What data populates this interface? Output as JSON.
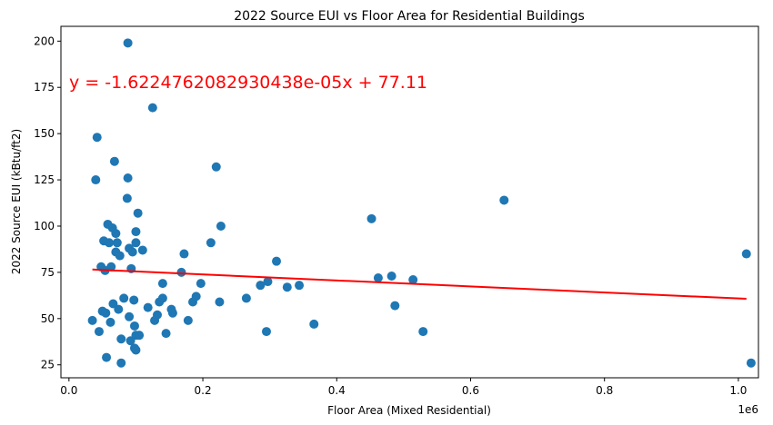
{
  "chart_data": {
    "type": "scatter",
    "title": "2022 Source EUI vs Floor Area for Residential Buildings",
    "xlabel": "Floor Area (Mixed Residential)",
    "ylabel": "2022 Source EUI (kBtu/ft2)",
    "x_offset_label": "1e6",
    "xlim": [
      -0.012,
      1.03
    ],
    "ylim": [
      18,
      208
    ],
    "x_ticks": [
      0.0,
      0.2,
      0.4,
      0.6,
      0.8,
      1.0
    ],
    "x_tick_labels": [
      "0.0",
      "0.2",
      "0.4",
      "0.6",
      "0.8",
      "1.0"
    ],
    "y_ticks": [
      25,
      50,
      75,
      100,
      125,
      150,
      175,
      200
    ],
    "y_tick_labels": [
      "25",
      "50",
      "75",
      "100",
      "125",
      "150",
      "175",
      "200"
    ],
    "grid": false,
    "marker_color": "#1f77b4",
    "line_color": "#ff0000",
    "equation_color": "#ff0000",
    "annotation": "y = -1.6224762082930438e-05x + 77.11",
    "regression": {
      "slope_per_1e6": -16.22476208293044,
      "intercept": 77.11,
      "x_range": [
        0.035,
        1.012
      ]
    },
    "points": [
      [
        0.035,
        49
      ],
      [
        0.04,
        125
      ],
      [
        0.042,
        148
      ],
      [
        0.045,
        43
      ],
      [
        0.048,
        78
      ],
      [
        0.05,
        54
      ],
      [
        0.052,
        92
      ],
      [
        0.054,
        76
      ],
      [
        0.055,
        53
      ],
      [
        0.056,
        29
      ],
      [
        0.058,
        101
      ],
      [
        0.06,
        91
      ],
      [
        0.062,
        48
      ],
      [
        0.063,
        78
      ],
      [
        0.065,
        99
      ],
      [
        0.066,
        58
      ],
      [
        0.068,
        135
      ],
      [
        0.07,
        86
      ],
      [
        0.07,
        96
      ],
      [
        0.072,
        91
      ],
      [
        0.074,
        55
      ],
      [
        0.076,
        84
      ],
      [
        0.078,
        39
      ],
      [
        0.078,
        26
      ],
      [
        0.082,
        61
      ],
      [
        0.087,
        115
      ],
      [
        0.088,
        199
      ],
      [
        0.088,
        126
      ],
      [
        0.09,
        88
      ],
      [
        0.09,
        51
      ],
      [
        0.092,
        38
      ],
      [
        0.093,
        77
      ],
      [
        0.095,
        86
      ],
      [
        0.097,
        60
      ],
      [
        0.098,
        46
      ],
      [
        0.098,
        34
      ],
      [
        0.1,
        33
      ],
      [
        0.1,
        41
      ],
      [
        0.1,
        97
      ],
      [
        0.1,
        91
      ],
      [
        0.103,
        107
      ],
      [
        0.105,
        41
      ],
      [
        0.11,
        87
      ],
      [
        0.118,
        56
      ],
      [
        0.125,
        164
      ],
      [
        0.128,
        49
      ],
      [
        0.132,
        52
      ],
      [
        0.135,
        59
      ],
      [
        0.14,
        61
      ],
      [
        0.14,
        69
      ],
      [
        0.145,
        42
      ],
      [
        0.153,
        55
      ],
      [
        0.155,
        53
      ],
      [
        0.168,
        75
      ],
      [
        0.172,
        85
      ],
      [
        0.178,
        49
      ],
      [
        0.185,
        59
      ],
      [
        0.19,
        62
      ],
      [
        0.197,
        69
      ],
      [
        0.212,
        91
      ],
      [
        0.22,
        132
      ],
      [
        0.225,
        59
      ],
      [
        0.227,
        100
      ],
      [
        0.265,
        61
      ],
      [
        0.286,
        68
      ],
      [
        0.295,
        43
      ],
      [
        0.297,
        70
      ],
      [
        0.31,
        81
      ],
      [
        0.326,
        67
      ],
      [
        0.344,
        68
      ],
      [
        0.366,
        47
      ],
      [
        0.452,
        104
      ],
      [
        0.462,
        72
      ],
      [
        0.482,
        73
      ],
      [
        0.487,
        57
      ],
      [
        0.514,
        71
      ],
      [
        0.529,
        43
      ],
      [
        0.65,
        114
      ],
      [
        1.012,
        85
      ],
      [
        1.019,
        26
      ]
    ]
  }
}
